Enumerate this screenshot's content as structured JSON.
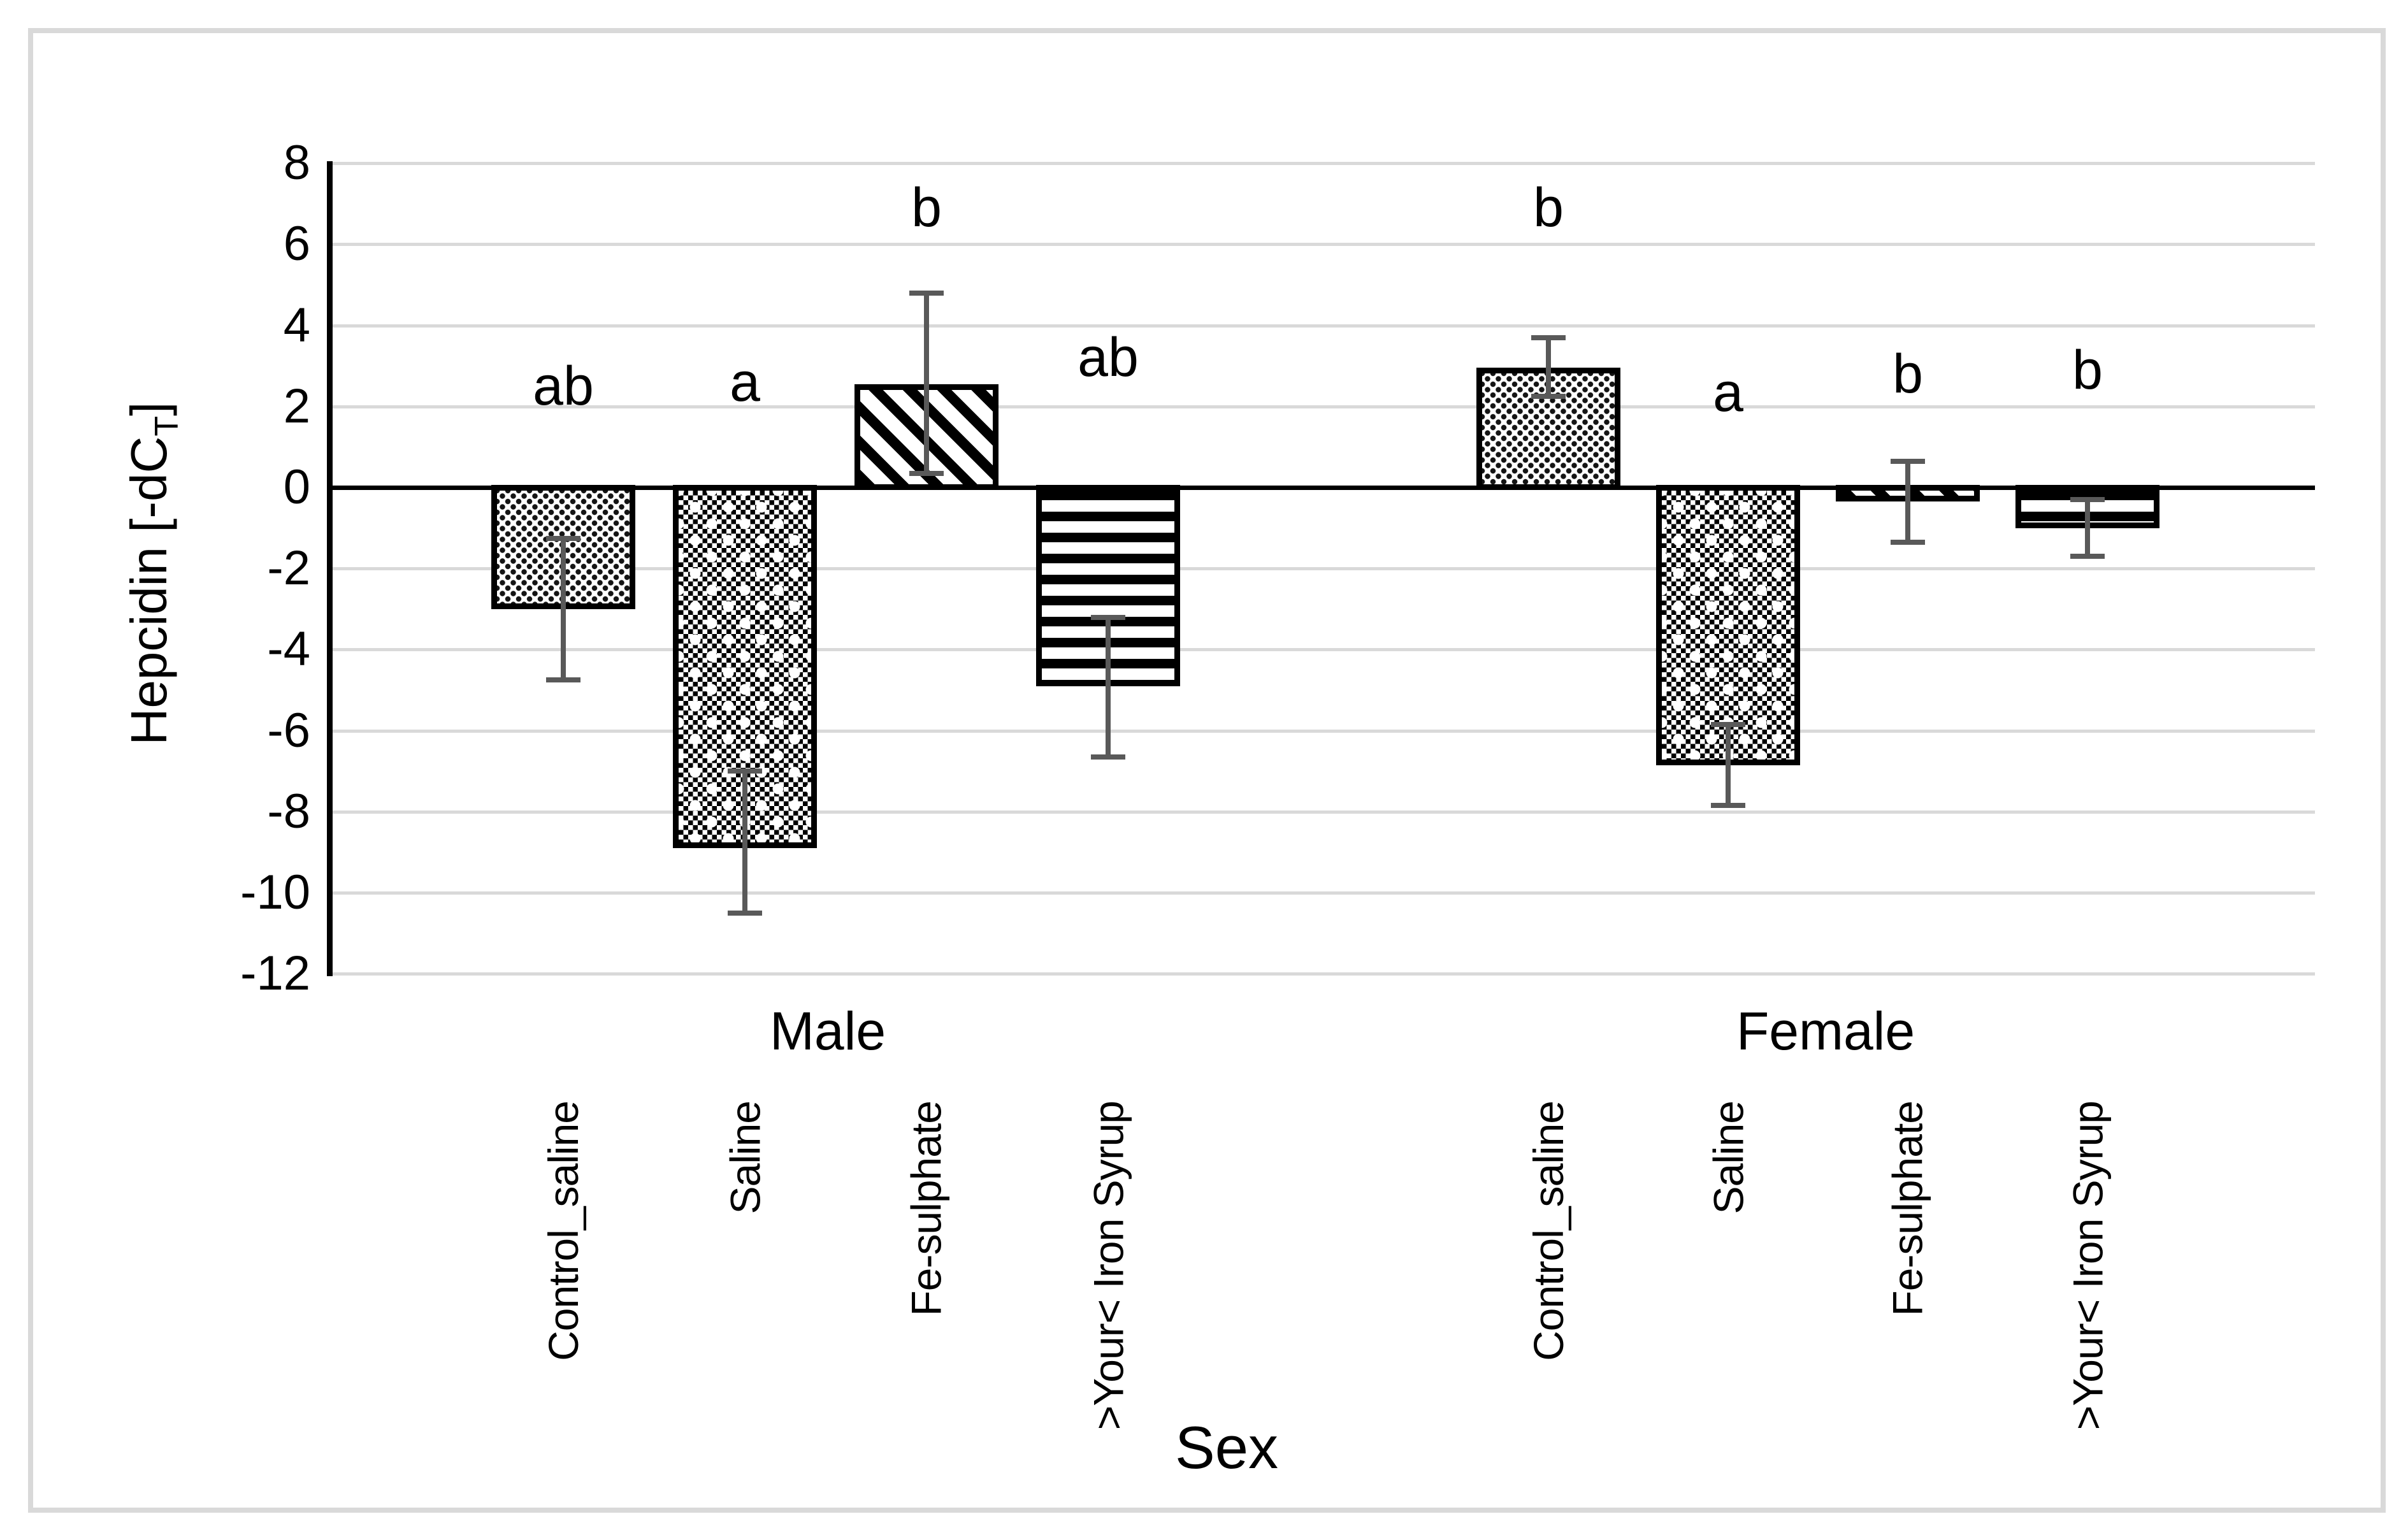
{
  "titles": {
    "x": "Sex",
    "y_pre": "Hepcidin [-dC",
    "y_sub": "T",
    "y_post": "]"
  },
  "chart_data": {
    "type": "bar",
    "title": "",
    "xlabel": "Sex",
    "ylabel": "Hepcidin [-dCT]",
    "ylim": [
      -12,
      8
    ],
    "grid": true,
    "legend": "none",
    "y_ticks": [
      8,
      6,
      4,
      2,
      0,
      -2,
      -4,
      -6,
      -8,
      -10,
      -12
    ],
    "error_bar_color": "#595959",
    "gridline_color": "#d9d9d9",
    "groups": [
      {
        "label": "Male",
        "items": [
          {
            "category": "Control_saline",
            "value": -3.0,
            "err_hi": -1.25,
            "err_lo": -4.75,
            "letter": "ab",
            "letter_y": 2.5,
            "pattern": "dotted"
          },
          {
            "category": "Saline",
            "value": -8.9,
            "err_hi": -7.0,
            "err_lo": -10.5,
            "letter": "a",
            "letter_y": 2.6,
            "pattern": "checker-plus"
          },
          {
            "category": "Fe-sulphate",
            "value": 2.55,
            "err_hi": 4.8,
            "err_lo": 0.35,
            "letter": "b",
            "letter_y": 6.9,
            "pattern": "diag-stripe"
          },
          {
            "category": ">Your< Iron Syrup",
            "value": -4.9,
            "err_hi": -3.2,
            "err_lo": -6.65,
            "letter": "ab",
            "letter_y": 3.2,
            "pattern": "h-stripe"
          }
        ]
      },
      {
        "label": "Female",
        "items": [
          {
            "category": "Control_saline",
            "value": 2.95,
            "err_hi": 3.7,
            "err_lo": 2.25,
            "letter": "b",
            "letter_y": 6.9,
            "pattern": "dotted"
          },
          {
            "category": "Saline",
            "value": -6.85,
            "err_hi": -5.85,
            "err_lo": -7.85,
            "letter": "a",
            "letter_y": 2.35,
            "pattern": "checker-plus"
          },
          {
            "category": "Fe-sulphate",
            "value": -0.35,
            "err_hi": 0.65,
            "err_lo": -1.35,
            "letter": "b",
            "letter_y": 2.8,
            "pattern": "diag-stripe"
          },
          {
            "category": ">Your< Iron Syrup",
            "value": -1.0,
            "err_hi": -0.3,
            "err_lo": -1.7,
            "letter": "b",
            "letter_y": 2.9,
            "pattern": "h-stripe"
          }
        ]
      }
    ]
  }
}
